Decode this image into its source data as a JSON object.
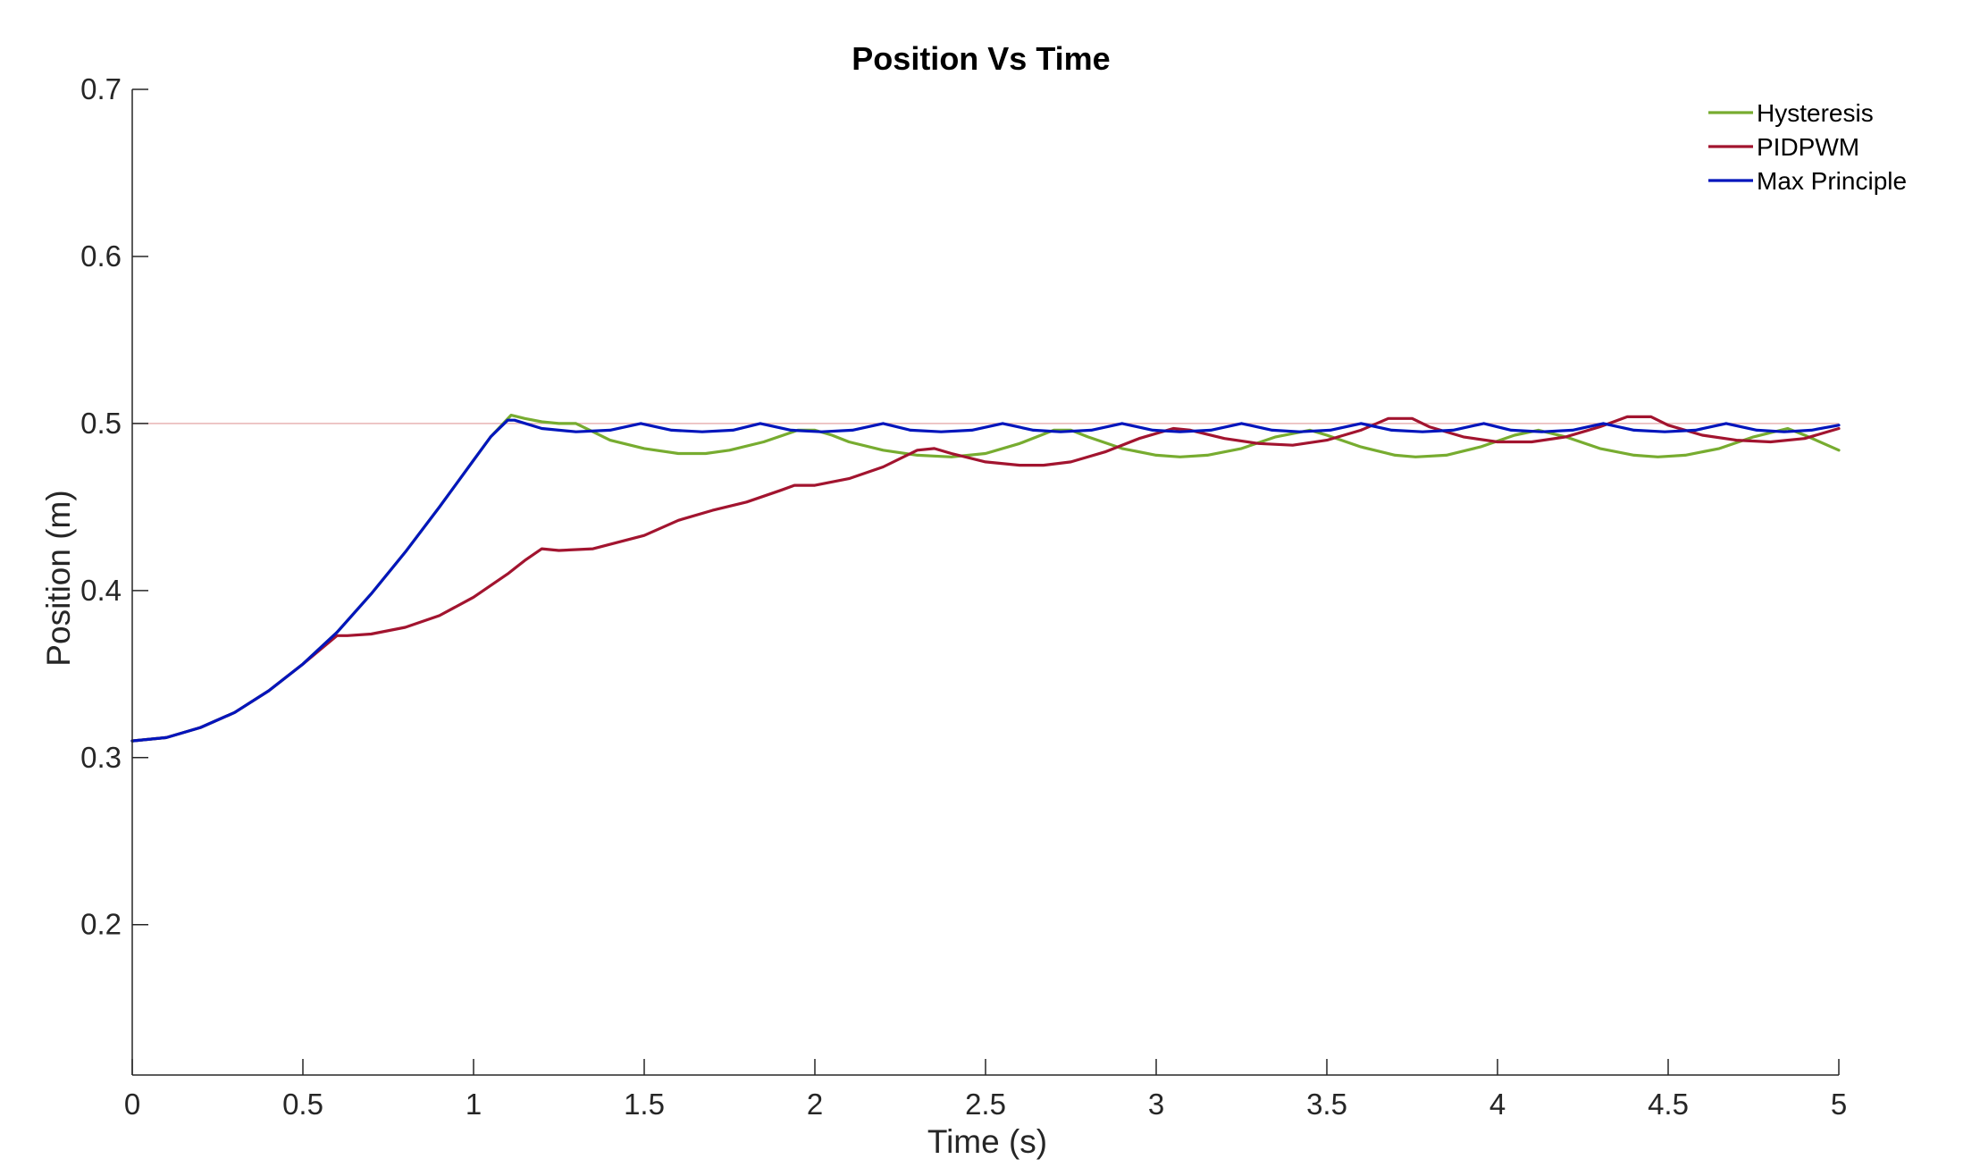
{
  "chart_data": {
    "type": "line",
    "title": "Position Vs Time",
    "xlabel": "Time (s)",
    "ylabel": "Position (m)",
    "xlim": [
      0,
      5
    ],
    "ylim": [
      0.11,
      0.7
    ],
    "x_ticks": [
      0,
      0.5,
      1,
      1.5,
      2,
      2.5,
      3,
      3.5,
      4,
      4.5,
      5
    ],
    "x_tick_labels": [
      "0",
      "0.5",
      "1",
      "1.5",
      "2",
      "2.5",
      "3",
      "3.5",
      "4",
      "4.5",
      "5"
    ],
    "y_ticks": [
      0.2,
      0.3,
      0.4,
      0.5,
      0.6,
      0.7
    ],
    "y_tick_labels": [
      "0.2",
      "0.3",
      "0.4",
      "0.5",
      "0.6",
      "0.7"
    ],
    "grid": false,
    "legend_position": "top-right",
    "reference_line": {
      "y": 0.5,
      "color": "#e8b4b4"
    },
    "series": [
      {
        "name": "Hysteresis",
        "color": "#77ac30",
        "x": [
          0,
          0.1,
          0.2,
          0.3,
          0.4,
          0.5,
          0.6,
          0.7,
          0.8,
          0.9,
          1.0,
          1.05,
          1.11,
          1.15,
          1.2,
          1.25,
          1.3,
          1.35,
          1.4,
          1.5,
          1.6,
          1.68,
          1.75,
          1.85,
          1.95,
          2.0,
          2.05,
          2.1,
          2.2,
          2.3,
          2.4,
          2.5,
          2.6,
          2.7,
          2.75,
          2.8,
          2.9,
          3.0,
          3.07,
          3.15,
          3.25,
          3.35,
          3.45,
          3.5,
          3.6,
          3.7,
          3.76,
          3.85,
          3.95,
          4.05,
          4.12,
          4.2,
          4.3,
          4.4,
          4.47,
          4.55,
          4.65,
          4.75,
          4.85,
          4.9,
          5.0
        ],
        "y": [
          0.31,
          0.312,
          0.318,
          0.327,
          0.34,
          0.356,
          0.375,
          0.398,
          0.423,
          0.45,
          0.478,
          0.492,
          0.505,
          0.503,
          0.501,
          0.5,
          0.5,
          0.495,
          0.49,
          0.485,
          0.482,
          0.482,
          0.484,
          0.489,
          0.496,
          0.496,
          0.493,
          0.489,
          0.484,
          0.481,
          0.48,
          0.482,
          0.488,
          0.496,
          0.496,
          0.492,
          0.485,
          0.481,
          0.48,
          0.481,
          0.485,
          0.492,
          0.496,
          0.493,
          0.486,
          0.481,
          0.48,
          0.481,
          0.486,
          0.493,
          0.496,
          0.492,
          0.485,
          0.481,
          0.48,
          0.481,
          0.485,
          0.492,
          0.497,
          0.493,
          0.484
        ]
      },
      {
        "name": "PIDPWM",
        "color": "#a2142f",
        "x": [
          0,
          0.1,
          0.2,
          0.3,
          0.4,
          0.5,
          0.6,
          0.63,
          0.7,
          0.8,
          0.9,
          1.0,
          1.1,
          1.15,
          1.2,
          1.25,
          1.35,
          1.5,
          1.6,
          1.7,
          1.8,
          1.9,
          1.94,
          2.0,
          2.1,
          2.2,
          2.3,
          2.35,
          2.4,
          2.5,
          2.6,
          2.67,
          2.75,
          2.85,
          2.95,
          3.05,
          3.1,
          3.2,
          3.3,
          3.4,
          3.5,
          3.6,
          3.68,
          3.75,
          3.8,
          3.9,
          4.0,
          4.1,
          4.2,
          4.3,
          4.38,
          4.45,
          4.5,
          4.6,
          4.7,
          4.8,
          4.9,
          5.0
        ],
        "y": [
          0.31,
          0.312,
          0.318,
          0.327,
          0.34,
          0.356,
          0.373,
          0.373,
          0.374,
          0.378,
          0.385,
          0.396,
          0.41,
          0.418,
          0.425,
          0.424,
          0.425,
          0.433,
          0.442,
          0.448,
          0.453,
          0.46,
          0.463,
          0.463,
          0.467,
          0.474,
          0.484,
          0.485,
          0.482,
          0.477,
          0.475,
          0.475,
          0.477,
          0.483,
          0.491,
          0.497,
          0.496,
          0.491,
          0.488,
          0.487,
          0.49,
          0.496,
          0.503,
          0.503,
          0.498,
          0.492,
          0.489,
          0.489,
          0.492,
          0.498,
          0.504,
          0.504,
          0.499,
          0.493,
          0.49,
          0.489,
          0.491,
          0.497
        ]
      },
      {
        "name": "Max Principle",
        "color": "#0015bc",
        "x": [
          0,
          0.1,
          0.2,
          0.3,
          0.4,
          0.5,
          0.6,
          0.7,
          0.8,
          0.9,
          1.0,
          1.05,
          1.1,
          1.12,
          1.2,
          1.3,
          1.4,
          1.49,
          1.58,
          1.67,
          1.76,
          1.84,
          1.93,
          2.02,
          2.11,
          2.2,
          2.28,
          2.37,
          2.46,
          2.55,
          2.64,
          2.72,
          2.81,
          2.9,
          2.99,
          3.07,
          3.16,
          3.25,
          3.34,
          3.42,
          3.51,
          3.6,
          3.69,
          3.78,
          3.87,
          3.96,
          4.04,
          4.13,
          4.22,
          4.31,
          4.4,
          4.49,
          4.58,
          4.67,
          4.76,
          4.84,
          4.92,
          5.0
        ],
        "y": [
          0.31,
          0.312,
          0.318,
          0.327,
          0.34,
          0.356,
          0.375,
          0.398,
          0.423,
          0.45,
          0.478,
          0.492,
          0.502,
          0.502,
          0.497,
          0.495,
          0.496,
          0.5,
          0.496,
          0.495,
          0.496,
          0.5,
          0.496,
          0.495,
          0.496,
          0.5,
          0.496,
          0.495,
          0.496,
          0.5,
          0.496,
          0.495,
          0.496,
          0.5,
          0.496,
          0.495,
          0.496,
          0.5,
          0.496,
          0.495,
          0.496,
          0.5,
          0.496,
          0.495,
          0.496,
          0.5,
          0.496,
          0.495,
          0.496,
          0.5,
          0.496,
          0.495,
          0.496,
          0.5,
          0.496,
          0.495,
          0.496,
          0.499
        ]
      }
    ]
  }
}
